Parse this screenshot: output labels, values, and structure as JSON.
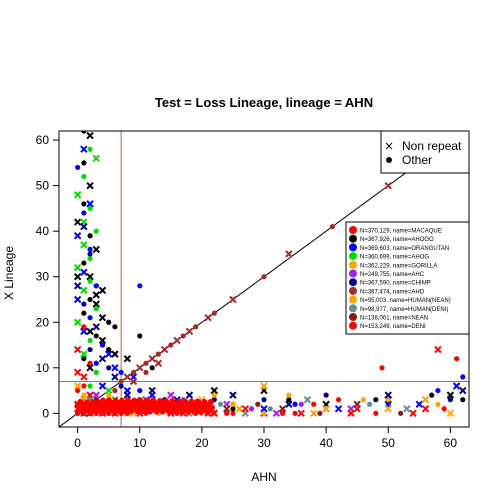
{
  "chart_data": {
    "type": "scatter",
    "title": "Test = Loss Lineage, lineage = AHN",
    "xlabel": "AHN",
    "ylabel": "X Lineage",
    "xlim": [
      -3,
      63
    ],
    "ylim": [
      -3,
      62
    ],
    "xticks": [
      0,
      10,
      20,
      30,
      40,
      50,
      60
    ],
    "yticks": [
      0,
      10,
      20,
      30,
      40,
      50,
      60
    ],
    "threshold_x": 7,
    "threshold_y": 7,
    "diagonal": true,
    "marker_legend": [
      {
        "label": "Non repeat",
        "symbol": "x"
      },
      {
        "label": "Other",
        "symbol": "dot"
      }
    ],
    "series": [
      {
        "name": "N=370,129, name=MACAQUE",
        "color": "#ff0000",
        "points": [
          [
            1,
            1
          ],
          [
            2,
            0
          ],
          [
            0,
            2
          ],
          [
            3,
            1
          ],
          [
            1,
            3
          ],
          [
            0,
            5
          ],
          [
            1,
            8
          ],
          [
            2,
            11
          ],
          [
            0,
            14
          ],
          [
            1,
            19
          ],
          [
            4,
            0
          ],
          [
            5,
            1
          ],
          [
            6,
            0
          ],
          [
            8,
            1
          ],
          [
            10,
            0
          ],
          [
            12,
            1
          ],
          [
            15,
            0
          ],
          [
            18,
            1
          ],
          [
            22,
            0
          ],
          [
            3,
            2
          ],
          [
            2,
            4
          ],
          [
            1,
            6
          ],
          [
            0,
            9
          ],
          [
            7,
            0
          ],
          [
            9,
            2
          ],
          [
            11,
            1
          ],
          [
            14,
            2
          ],
          [
            16,
            0
          ],
          [
            20,
            1
          ],
          [
            25,
            0
          ],
          [
            30,
            0
          ],
          [
            35,
            0
          ],
          [
            40,
            1
          ],
          [
            49,
            10
          ],
          [
            58,
            14
          ],
          [
            61,
            12
          ],
          [
            56,
            1
          ],
          [
            42,
            3
          ],
          [
            45,
            1
          ]
        ]
      },
      {
        "name": "N=367,926, name=AHOGO",
        "color": "#000000",
        "points": [
          [
            1,
            62
          ],
          [
            2,
            61
          ],
          [
            1,
            55
          ],
          [
            2,
            50
          ],
          [
            1,
            46
          ],
          [
            0,
            42
          ],
          [
            2,
            39
          ],
          [
            3,
            36
          ],
          [
            1,
            33
          ],
          [
            2,
            30
          ],
          [
            3,
            28
          ],
          [
            4,
            27
          ],
          [
            2,
            25
          ],
          [
            3,
            24
          ],
          [
            1,
            22
          ],
          [
            4,
            21
          ],
          [
            5,
            20
          ],
          [
            2,
            18
          ],
          [
            3,
            17
          ],
          [
            4,
            16
          ],
          [
            5,
            14
          ],
          [
            6,
            13
          ],
          [
            1,
            12
          ],
          [
            2,
            10
          ],
          [
            10,
            17
          ],
          [
            8,
            12
          ],
          [
            12,
            10
          ],
          [
            3,
            26
          ],
          [
            6,
            19
          ],
          [
            0,
            30
          ],
          [
            20,
            2
          ],
          [
            22,
            5
          ],
          [
            25,
            1
          ],
          [
            30,
            5
          ],
          [
            34,
            3
          ],
          [
            40,
            2
          ],
          [
            48,
            3
          ],
          [
            50,
            3
          ],
          [
            57,
            4
          ],
          [
            60,
            4
          ],
          [
            62,
            3
          ]
        ]
      },
      {
        "name": "N=369,603, name=ORANGUTAN",
        "color": "#0000ff",
        "points": [
          [
            1,
            58
          ],
          [
            0,
            54
          ],
          [
            2,
            46
          ],
          [
            1,
            44
          ],
          [
            0,
            39
          ],
          [
            2,
            36
          ],
          [
            1,
            31
          ],
          [
            3,
            28
          ],
          [
            0,
            25
          ],
          [
            2,
            21
          ],
          [
            1,
            18
          ],
          [
            4,
            15
          ],
          [
            5,
            13
          ],
          [
            3,
            11
          ],
          [
            6,
            10
          ],
          [
            7,
            9
          ],
          [
            9,
            8
          ],
          [
            10,
            5
          ],
          [
            12,
            4
          ],
          [
            14,
            3
          ],
          [
            16,
            3
          ],
          [
            18,
            2
          ],
          [
            20,
            2
          ],
          [
            25,
            2
          ],
          [
            30,
            1
          ],
          [
            35,
            2
          ],
          [
            42,
            1
          ],
          [
            50,
            2
          ],
          [
            55,
            2
          ],
          [
            58,
            5
          ],
          [
            61,
            6
          ],
          [
            10,
            28
          ],
          [
            8,
            5
          ],
          [
            2,
            3
          ],
          [
            4,
            6
          ],
          [
            62,
            8
          ]
        ]
      },
      {
        "name": "N=360,699, name=AHOG",
        "color": "#00dd00",
        "points": [
          [
            2,
            58
          ],
          [
            3,
            56
          ],
          [
            1,
            52
          ],
          [
            0,
            48
          ],
          [
            2,
            45
          ],
          [
            1,
            42
          ],
          [
            3,
            40
          ],
          [
            1,
            37
          ],
          [
            2,
            34
          ],
          [
            0,
            32
          ],
          [
            2,
            29
          ],
          [
            1,
            27
          ],
          [
            3,
            23
          ],
          [
            0,
            20
          ],
          [
            2,
            16
          ],
          [
            1,
            13
          ],
          [
            3,
            9
          ],
          [
            5,
            5
          ],
          [
            8,
            2
          ],
          [
            12,
            1
          ],
          [
            15,
            2
          ],
          [
            20,
            1
          ],
          [
            4,
            2
          ],
          [
            6,
            3
          ],
          [
            2,
            6
          ]
        ]
      },
      {
        "name": "N=362,229, name=GORILLA",
        "color": "#ffa500",
        "points": [
          [
            1,
            3
          ],
          [
            2,
            1
          ],
          [
            4,
            2
          ],
          [
            6,
            1
          ],
          [
            8,
            0
          ],
          [
            10,
            3
          ],
          [
            12,
            2
          ],
          [
            16,
            1
          ],
          [
            20,
            3
          ],
          [
            25,
            2
          ],
          [
            30,
            6
          ],
          [
            34,
            4
          ],
          [
            40,
            1
          ],
          [
            50,
            3
          ],
          [
            56,
            3
          ],
          [
            58,
            2
          ],
          [
            60,
            0
          ]
        ]
      },
      {
        "name": "N=249,755, name=AHC",
        "color": "#a020f0",
        "points": [
          [
            2,
            2
          ],
          [
            3,
            4
          ],
          [
            5,
            3
          ],
          [
            7,
            2
          ],
          [
            9,
            1
          ],
          [
            11,
            3
          ],
          [
            13,
            2
          ],
          [
            15,
            4
          ],
          [
            17,
            3
          ],
          [
            19,
            2
          ],
          [
            21,
            1
          ],
          [
            24,
            2
          ],
          [
            28,
            1
          ],
          [
            32,
            0
          ],
          [
            36,
            2
          ],
          [
            44,
            1
          ]
        ]
      },
      {
        "name": "N=367,590, name=CHIMP",
        "color": "#00008b",
        "points": [
          [
            1,
            41
          ],
          [
            2,
            35
          ],
          [
            0,
            28
          ],
          [
            1,
            24
          ],
          [
            3,
            19
          ],
          [
            2,
            14
          ],
          [
            4,
            12
          ],
          [
            5,
            10
          ],
          [
            6,
            8
          ],
          [
            7,
            6
          ],
          [
            8,
            4
          ],
          [
            10,
            3
          ],
          [
            12,
            5
          ],
          [
            14,
            3
          ],
          [
            18,
            4
          ],
          [
            22,
            3
          ],
          [
            25,
            4
          ],
          [
            30,
            3
          ],
          [
            34,
            2
          ],
          [
            40,
            4
          ],
          [
            50,
            4
          ],
          [
            60,
            3
          ],
          [
            62,
            5
          ]
        ]
      },
      {
        "name": "N=367,474, name=AHD",
        "color": "#a52a2a",
        "points": [
          [
            7,
            7
          ],
          [
            8,
            8
          ],
          [
            9,
            9
          ],
          [
            10,
            10
          ],
          [
            11,
            11
          ],
          [
            12,
            12
          ],
          [
            13,
            13
          ],
          [
            14,
            14
          ],
          [
            15,
            15
          ],
          [
            16,
            16
          ],
          [
            17,
            17
          ],
          [
            18,
            18
          ],
          [
            19,
            19
          ],
          [
            21,
            21
          ],
          [
            22,
            22
          ],
          [
            25,
            25
          ],
          [
            30,
            30
          ],
          [
            34,
            35
          ],
          [
            41,
            41
          ],
          [
            50,
            50
          ],
          [
            61,
            61
          ],
          [
            3,
            1
          ],
          [
            5,
            0
          ],
          [
            2,
            2
          ],
          [
            6,
            5
          ],
          [
            9,
            7
          ],
          [
            11,
            9
          ],
          [
            13,
            11
          ]
        ]
      },
      {
        "name": "N=95,003, name=HUMAN(NEAN)",
        "color": "#ffa500",
        "points": [
          [
            0,
            6
          ],
          [
            1,
            4
          ],
          [
            3,
            2
          ],
          [
            5,
            4
          ],
          [
            9,
            0
          ],
          [
            13,
            0
          ],
          [
            17,
            1
          ],
          [
            22,
            4
          ],
          [
            26,
            1
          ],
          [
            30,
            0
          ],
          [
            38,
            0
          ],
          [
            46,
            3
          ],
          [
            50,
            1
          ]
        ]
      },
      {
        "name": "N=98,977, name=HUMAN(DENI)",
        "color": "#5f8f8f",
        "points": [
          [
            0,
            2
          ],
          [
            2,
            3
          ],
          [
            4,
            1
          ],
          [
            6,
            2
          ],
          [
            8,
            3
          ],
          [
            11,
            2
          ],
          [
            14,
            1
          ],
          [
            18,
            0
          ],
          [
            23,
            2
          ],
          [
            27,
            0
          ],
          [
            31,
            1
          ],
          [
            37,
            3
          ],
          [
            47,
            2
          ],
          [
            53,
            1
          ]
        ]
      },
      {
        "name": "N=138,061, name=NEAN",
        "color": "#8b1a1a",
        "points": [
          [
            1,
            0
          ],
          [
            3,
            3
          ],
          [
            5,
            2
          ],
          [
            7,
            1
          ],
          [
            10,
            1
          ],
          [
            13,
            2
          ],
          [
            16,
            2
          ],
          [
            19,
            0
          ],
          [
            24,
            1
          ],
          [
            29,
            2
          ],
          [
            33,
            1
          ],
          [
            39,
            0
          ],
          [
            45,
            2
          ],
          [
            52,
            0
          ]
        ]
      },
      {
        "name": "N=153,249, name=DENI",
        "color": "#ff0000",
        "points": [
          [
            0,
            0
          ],
          [
            0,
            1
          ],
          [
            1,
            2
          ],
          [
            2,
            0
          ],
          [
            3,
            0
          ],
          [
            4,
            1
          ],
          [
            5,
            2
          ],
          [
            6,
            1
          ],
          [
            8,
            2
          ],
          [
            10,
            2
          ],
          [
            11,
            0
          ],
          [
            13,
            1
          ],
          [
            15,
            1
          ],
          [
            17,
            0
          ],
          [
            19,
            1
          ],
          [
            21,
            0
          ],
          [
            24,
            0
          ],
          [
            27,
            1
          ],
          [
            33,
            0
          ],
          [
            36,
            0
          ],
          [
            38,
            2
          ],
          [
            44,
            0
          ],
          [
            48,
            0
          ],
          [
            54,
            0
          ],
          [
            59,
            1
          ]
        ]
      }
    ]
  }
}
